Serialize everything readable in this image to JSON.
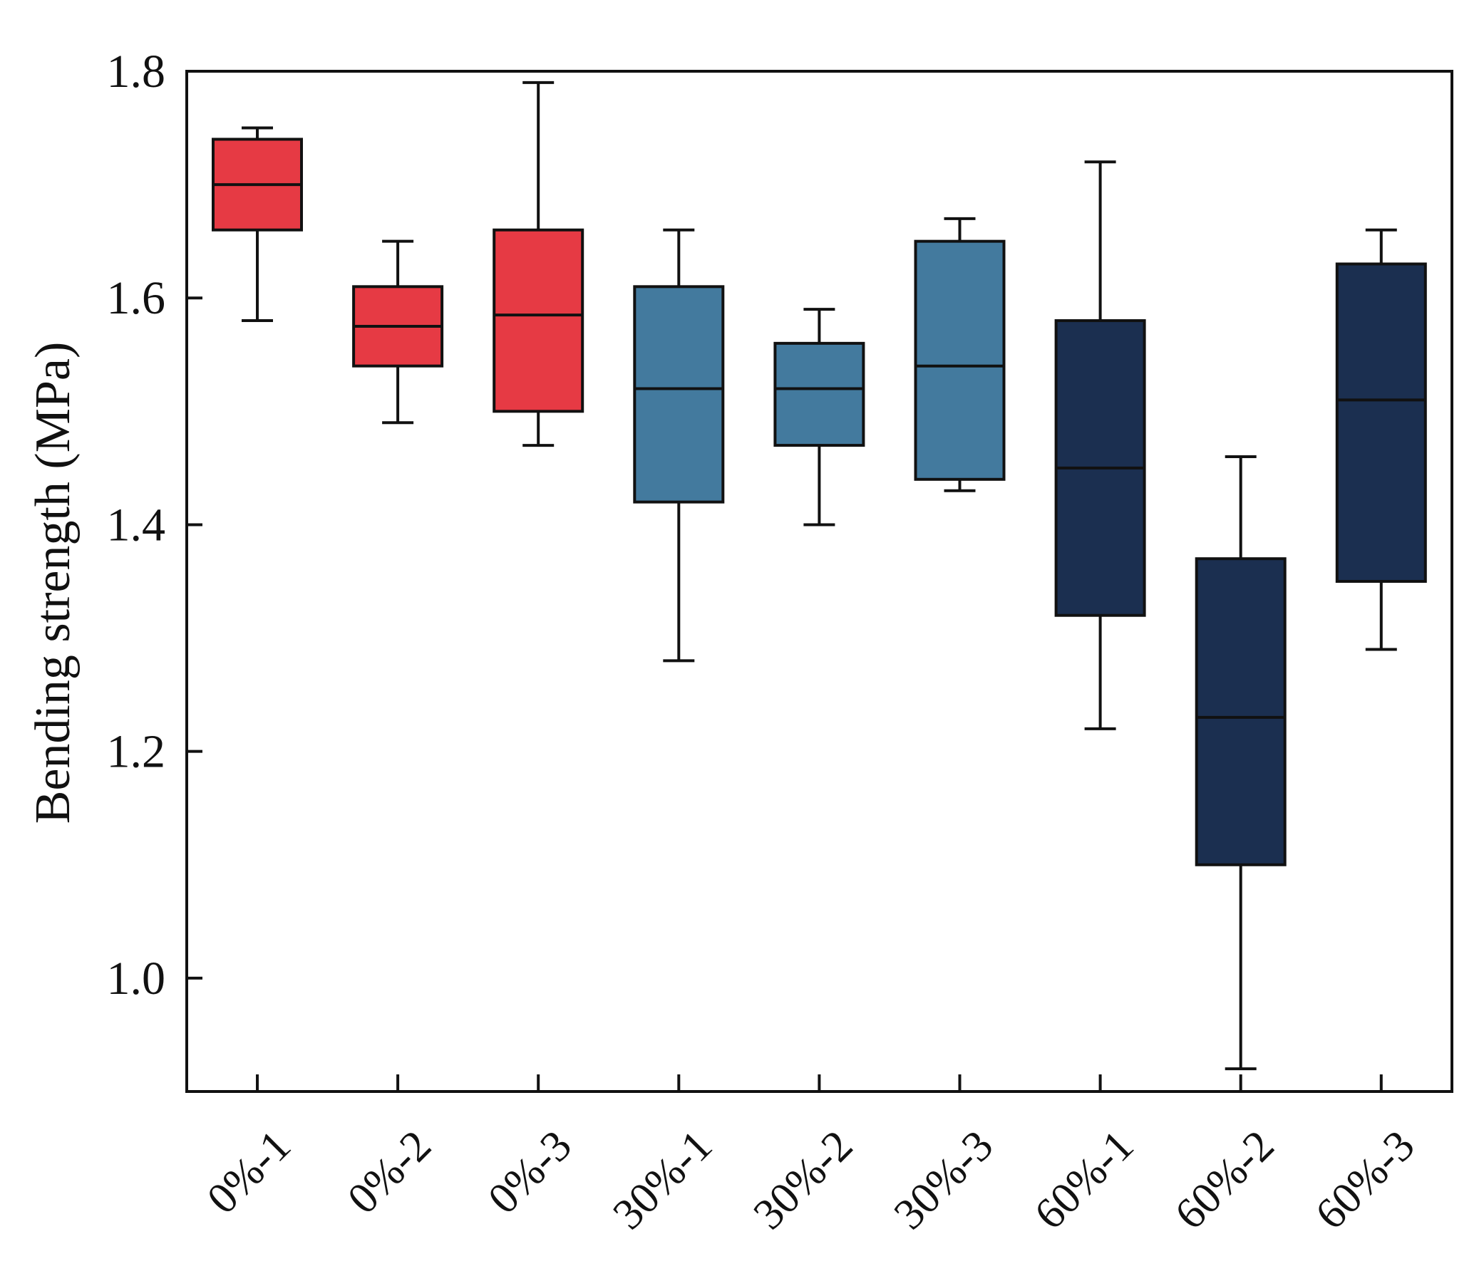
{
  "chart_data": {
    "type": "box",
    "ylabel": "Bending strength (MPa)",
    "xlabel": "",
    "ylim": [
      0.9,
      1.8
    ],
    "yticks": [
      1.0,
      1.2,
      1.4,
      1.6,
      1.8
    ],
    "ytick_labels": [
      "1.0",
      "1.2",
      "1.4",
      "1.6",
      "1.8"
    ],
    "grid": false,
    "legend": "none",
    "categories": [
      "0%-1",
      "0%-2",
      "0%-3",
      "30%-1",
      "30%-2",
      "30%-3",
      "60%-1",
      "60%-2",
      "60%-3"
    ],
    "groups": [
      {
        "name": "0%",
        "color": "#e63a44"
      },
      {
        "name": "30%",
        "color": "#437a9e"
      },
      {
        "name": "60%",
        "color": "#1b2f50"
      }
    ],
    "boxes": [
      {
        "category": "0%-1",
        "group": "0%",
        "min": 1.58,
        "q1": 1.66,
        "median": 1.7,
        "q3": 1.74,
        "max": 1.75
      },
      {
        "category": "0%-2",
        "group": "0%",
        "min": 1.49,
        "q1": 1.54,
        "median": 1.575,
        "q3": 1.61,
        "max": 1.65
      },
      {
        "category": "0%-3",
        "group": "0%",
        "min": 1.47,
        "q1": 1.5,
        "median": 1.585,
        "q3": 1.66,
        "max": 1.79
      },
      {
        "category": "30%-1",
        "group": "30%",
        "min": 1.28,
        "q1": 1.42,
        "median": 1.52,
        "q3": 1.61,
        "max": 1.66
      },
      {
        "category": "30%-2",
        "group": "30%",
        "min": 1.4,
        "q1": 1.47,
        "median": 1.52,
        "q3": 1.56,
        "max": 1.59
      },
      {
        "category": "30%-3",
        "group": "30%",
        "min": 1.43,
        "q1": 1.44,
        "median": 1.54,
        "q3": 1.65,
        "max": 1.67
      },
      {
        "category": "60%-1",
        "group": "60%",
        "min": 1.22,
        "q1": 1.32,
        "median": 1.45,
        "q3": 1.58,
        "max": 1.72
      },
      {
        "category": "60%-2",
        "group": "60%",
        "min": 0.92,
        "q1": 1.1,
        "median": 1.23,
        "q3": 1.37,
        "max": 1.46
      },
      {
        "category": "60%-3",
        "group": "60%",
        "min": 1.29,
        "q1": 1.35,
        "median": 1.51,
        "q3": 1.63,
        "max": 1.66
      }
    ]
  }
}
